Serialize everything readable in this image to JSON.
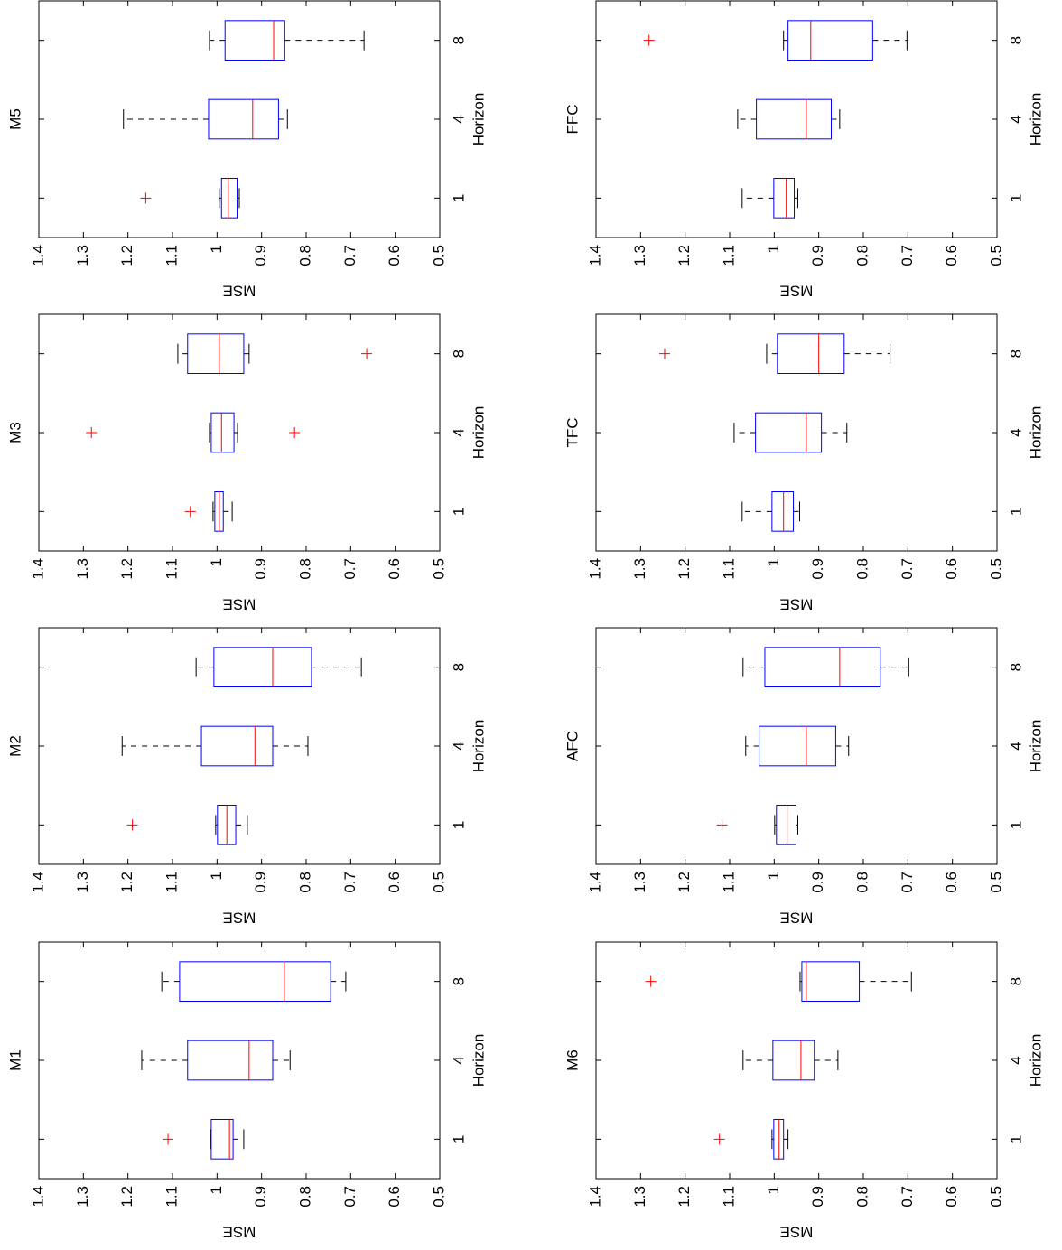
{
  "chart_data": [
    {
      "type": "box",
      "title": "M1",
      "x_label": "Horizon",
      "y_label": "MSE",
      "categories": [
        "1",
        "4",
        "8"
      ],
      "ylim": [
        0.5,
        1.4
      ],
      "yticks": [
        0.5,
        0.6,
        0.7,
        0.8,
        0.9,
        1,
        1.1,
        1.2,
        1.3,
        1.4
      ],
      "box_color": "#0000ff",
      "median_color": "#ff0000",
      "flier_color": "#ff0000",
      "boxes": [
        {
          "whislo": 0.94,
          "q1": 0.964,
          "med": 0.972,
          "q3": 1.013,
          "whishi": 1.015,
          "fliers": [
            1.11
          ]
        },
        {
          "whislo": 0.836,
          "q1": 0.875,
          "med": 0.928,
          "q3": 1.066,
          "whishi": 1.169,
          "fliers": []
        },
        {
          "whislo": 0.711,
          "q1": 0.745,
          "med": 0.849,
          "q3": 1.084,
          "whishi": 1.124,
          "fliers": []
        }
      ]
    },
    {
      "type": "box",
      "title": "M2",
      "x_label": "Horizon",
      "y_label": "MSE",
      "categories": [
        "1",
        "4",
        "8"
      ],
      "ylim": [
        0.5,
        1.4
      ],
      "yticks": [
        0.5,
        0.6,
        0.7,
        0.8,
        0.9,
        1,
        1.1,
        1.2,
        1.3,
        1.4
      ],
      "box_color": "#0000ff",
      "median_color": "#ff0000",
      "flier_color": "#ff0000",
      "boxes": [
        {
          "whislo": 0.932,
          "q1": 0.958,
          "med": 0.978,
          "q3": 0.999,
          "whishi": 1.003,
          "fliers": [
            1.19
          ]
        },
        {
          "whislo": 0.796,
          "q1": 0.875,
          "med": 0.915,
          "q3": 1.035,
          "whishi": 1.213,
          "fliers": []
        },
        {
          "whislo": 0.676,
          "q1": 0.788,
          "med": 0.875,
          "q3": 1.007,
          "whishi": 1.047,
          "fliers": []
        }
      ]
    },
    {
      "type": "box",
      "title": "M3",
      "x_label": "Horizon",
      "y_label": "MSE",
      "categories": [
        "1",
        "4",
        "8"
      ],
      "ylim": [
        0.5,
        1.4
      ],
      "yticks": [
        0.5,
        0.6,
        0.7,
        0.8,
        0.9,
        1,
        1.1,
        1.2,
        1.3,
        1.4
      ],
      "box_color": "#0000ff",
      "median_color": "#ff0000",
      "flier_color": "#ff0000",
      "boxes": [
        {
          "whislo": 0.966,
          "q1": 0.986,
          "med": 0.995,
          "q3": 1.005,
          "whishi": 1.009,
          "fliers": [
            1.06
          ]
        },
        {
          "whislo": 0.954,
          "q1": 0.962,
          "med": 0.99,
          "q3": 1.013,
          "whishi": 1.017,
          "fliers": [
            1.282,
            0.826
          ]
        },
        {
          "whislo": 0.928,
          "q1": 0.94,
          "med": 0.995,
          "q3": 1.066,
          "whishi": 1.088,
          "fliers": [
            0.664
          ]
        }
      ]
    },
    {
      "type": "box",
      "title": "M5",
      "x_label": "Horizon",
      "y_label": "MSE",
      "categories": [
        "1",
        "4",
        "8"
      ],
      "ylim": [
        0.5,
        1.4
      ],
      "yticks": [
        0.5,
        0.6,
        0.7,
        0.8,
        0.9,
        1,
        1.1,
        1.2,
        1.3,
        1.4
      ],
      "box_color": "#0000ff",
      "median_color": "#ff0000",
      "flier_color": "#ff0000",
      "boxes": [
        {
          "whislo": 0.95,
          "q1": 0.955,
          "med": 0.975,
          "q3": 0.99,
          "whishi": 0.995,
          "fliers": [
            1.16
          ]
        },
        {
          "whislo": 0.842,
          "q1": 0.862,
          "med": 0.92,
          "q3": 1.019,
          "whishi": 1.21,
          "fliers": []
        },
        {
          "whislo": 0.67,
          "q1": 0.848,
          "med": 0.873,
          "q3": 0.982,
          "whishi": 1.017,
          "fliers": []
        }
      ]
    },
    {
      "type": "box",
      "title": "M6",
      "x_label": "Horizon",
      "y_label": "MSE",
      "categories": [
        "1",
        "4",
        "8"
      ],
      "ylim": [
        0.5,
        1.4
      ],
      "yticks": [
        0.5,
        0.6,
        0.7,
        0.8,
        0.9,
        1,
        1.1,
        1.2,
        1.3,
        1.4
      ],
      "box_color": "#0000ff",
      "median_color": "#ff0000",
      "flier_color": "#ff0000",
      "boxes": [
        {
          "whislo": 0.969,
          "q1": 0.979,
          "med": 0.989,
          "q3": 1.001,
          "whishi": 1.005,
          "fliers": [
            1.123
          ]
        },
        {
          "whislo": 0.857,
          "q1": 0.91,
          "med": 0.94,
          "q3": 1.003,
          "whishi": 1.07,
          "fliers": []
        },
        {
          "whislo": 0.692,
          "q1": 0.809,
          "med": 0.928,
          "q3": 0.938,
          "whishi": 0.942,
          "fliers": [
            1.277
          ]
        }
      ]
    },
    {
      "type": "box",
      "title": "AFC",
      "x_label": "Horizon",
      "y_label": "MSE",
      "categories": [
        "1",
        "4",
        "8"
      ],
      "ylim": [
        0.5,
        1.4
      ],
      "yticks": [
        0.5,
        0.6,
        0.7,
        0.8,
        0.9,
        1,
        1.1,
        1.2,
        1.3,
        1.4
      ],
      "box_color": "#0000ff",
      "median_color": "#ff0000",
      "flier_color": "#ff0000",
      "boxes": [
        {
          "whislo": 0.947,
          "q1": 0.951,
          "med": 0.971,
          "q3": 0.995,
          "whishi": 0.999,
          "fliers": [
            1.117
          ]
        },
        {
          "whislo": 0.833,
          "q1": 0.862,
          "med": 0.928,
          "q3": 1.034,
          "whishi": 1.064,
          "fliers": []
        },
        {
          "whislo": 0.698,
          "q1": 0.762,
          "med": 0.853,
          "q3": 1.021,
          "whishi": 1.07,
          "fliers": []
        }
      ]
    },
    {
      "type": "box",
      "title": "TFC",
      "x_label": "Horizon",
      "y_label": "MSE",
      "categories": [
        "1",
        "4",
        "8"
      ],
      "ylim": [
        0.5,
        1.4
      ],
      "yticks": [
        0.5,
        0.6,
        0.7,
        0.8,
        0.9,
        1,
        1.1,
        1.2,
        1.3,
        1.4
      ],
      "box_color": "#0000ff",
      "median_color": "#ff0000",
      "flier_color": "#ff0000",
      "boxes": [
        {
          "whislo": 0.943,
          "q1": 0.957,
          "med": 0.979,
          "q3": 1.005,
          "whishi": 1.072,
          "fliers": []
        },
        {
          "whislo": 0.837,
          "q1": 0.894,
          "med": 0.928,
          "q3": 1.042,
          "whishi": 1.09,
          "fliers": []
        },
        {
          "whislo": 0.74,
          "q1": 0.843,
          "med": 0.9,
          "q3": 0.993,
          "whishi": 1.017,
          "fliers": [
            1.246
          ]
        }
      ]
    },
    {
      "type": "box",
      "title": "FFC",
      "x_label": "Horizon",
      "y_label": "MSE",
      "categories": [
        "1",
        "4",
        "8"
      ],
      "ylim": [
        0.5,
        1.4
      ],
      "yticks": [
        0.5,
        0.6,
        0.7,
        0.8,
        0.9,
        1,
        1.1,
        1.2,
        1.3,
        1.4
      ],
      "box_color": "#0000ff",
      "median_color": "#ff0000",
      "flier_color": "#ff0000",
      "boxes": [
        {
          "whislo": 0.947,
          "q1": 0.955,
          "med": 0.973,
          "q3": 1.001,
          "whishi": 1.072,
          "fliers": []
        },
        {
          "whislo": 0.853,
          "q1": 0.872,
          "med": 0.928,
          "q3": 1.04,
          "whishi": 1.082,
          "fliers": []
        },
        {
          "whislo": 0.702,
          "q1": 0.779,
          "med": 0.918,
          "q3": 0.969,
          "whishi": 0.979,
          "fliers": [
            1.281
          ]
        }
      ]
    }
  ]
}
